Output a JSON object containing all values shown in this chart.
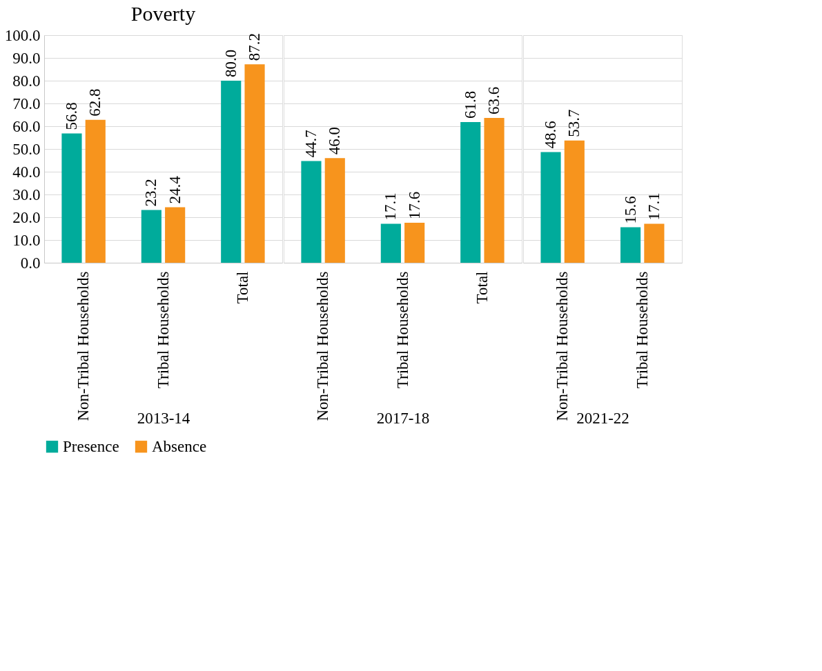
{
  "chart_data": [
    {
      "type": "bar",
      "title": "Poverty",
      "xlabel": "2013-14",
      "categories": [
        "Non-Tribal Households",
        "Tribal Households",
        "Total"
      ],
      "series": [
        {
          "name": "Presence",
          "color": "#00ab9b",
          "values": [
            56.8,
            23.2,
            80.0
          ],
          "value_labels": [
            "56.8",
            "23.2",
            "80.0"
          ]
        },
        {
          "name": "Absence",
          "color": "#f7941d",
          "values": [
            62.8,
            24.4,
            87.2
          ],
          "value_labels": [
            "62.8",
            "24.4",
            "87.2"
          ]
        }
      ],
      "ylim": [
        0,
        100
      ],
      "yticks": [
        {
          "value": 0,
          "label": "0.0"
        },
        {
          "value": 10,
          "label": "10.0"
        },
        {
          "value": 20,
          "label": "20.0"
        },
        {
          "value": 30,
          "label": "30.0"
        },
        {
          "value": 40,
          "label": "40.0"
        },
        {
          "value": 50,
          "label": "50.0"
        },
        {
          "value": 60,
          "label": "60.0"
        },
        {
          "value": 70,
          "label": "70.0"
        },
        {
          "value": 80,
          "label": "80.0"
        },
        {
          "value": 90,
          "label": "90.0"
        },
        {
          "value": 100,
          "label": "100.0"
        }
      ],
      "grid": "y",
      "legend": "bottom"
    },
    {
      "type": "bar",
      "xlabel": "2017-18",
      "categories": [
        "Non-Tribal Households",
        "Tribal Households",
        "Total"
      ],
      "series": [
        {
          "name": "Presence",
          "color": "#00ab9b",
          "values": [
            44.7,
            17.1,
            61.8
          ],
          "value_labels": [
            "44.7",
            "17.1",
            "61.8"
          ]
        },
        {
          "name": "Absence",
          "color": "#f7941d",
          "values": [
            46.0,
            17.6,
            63.6
          ],
          "value_labels": [
            "46.0",
            "17.6",
            "63.6"
          ]
        }
      ],
      "ylim": [
        0,
        100
      ],
      "grid": "y",
      "tick_labels": "x"
    },
    {
      "type": "bar",
      "xlabel": "2021-22",
      "categories": [
        "Non-Tribal Households",
        "Tribal Households"
      ],
      "series": [
        {
          "name": "Presence",
          "color": "#00ab9b",
          "values": [
            48.6,
            15.6
          ],
          "value_labels": [
            "48.6",
            "15.6"
          ]
        },
        {
          "name": "Absence",
          "color": "#f7941d",
          "values": [
            53.7,
            17.1
          ],
          "value_labels": [
            "53.7",
            "17.1"
          ]
        }
      ],
      "ylim": [
        0,
        100
      ],
      "grid": "y",
      "tick_labels": "x"
    }
  ]
}
